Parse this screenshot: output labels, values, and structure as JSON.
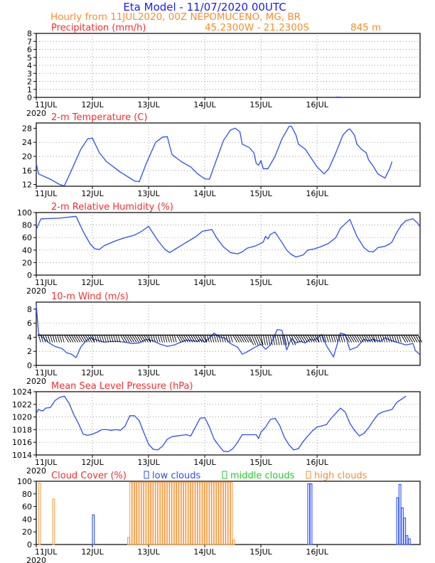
{
  "header": {
    "title": "Eta Model - 11/07/2020 00UTC",
    "line2": "Hourly from 11JUL2020, 00Z  NEPOMUCENO, MG, BR",
    "coords": "45.2300W - 21.2300S",
    "elev": "845  m"
  },
  "colors": {
    "title": "#1a1aff",
    "subtitle": "#ff8c2a",
    "panel_title": "#ff2a2a",
    "line": "#2a4dff",
    "wind": "#000000",
    "low": "#2a4dff",
    "mid": "#22cc22",
    "high": "#ff8c2a"
  },
  "chart_data": [
    {
      "type": "bar",
      "title": "Precipitation (mm/h)",
      "ylim": [
        0,
        8
      ],
      "yticks": [
        0,
        1,
        2,
        3,
        4,
        5,
        6,
        7,
        8
      ],
      "x_ticks": [
        "11JUL",
        "12JUL",
        "13JUL",
        "14JUL",
        "15JUL",
        "16JUL"
      ],
      "x_year": "2020",
      "grid": true,
      "bars": [
        [
          128,
          0.1
        ],
        [
          129,
          0.1
        ]
      ]
    },
    {
      "type": "line",
      "title": "2-m Temperature (C)",
      "ylim": [
        11.5,
        29.5
      ],
      "yticks": [
        12,
        16,
        20,
        24,
        28
      ],
      "x_ticks": [
        "11JUL",
        "12JUL",
        "13JUL",
        "14JUL",
        "15JUL",
        "16JUL"
      ],
      "grid": true,
      "points": [
        [
          0,
          17.9
        ],
        [
          1,
          15
        ],
        [
          6,
          13.5
        ],
        [
          10,
          12
        ],
        [
          12,
          11.6
        ],
        [
          15,
          16
        ],
        [
          19,
          22
        ],
        [
          22,
          25
        ],
        [
          24,
          25.2
        ],
        [
          27,
          21
        ],
        [
          30,
          18.5
        ],
        [
          36,
          15.5
        ],
        [
          42,
          13
        ],
        [
          44,
          12.8
        ],
        [
          47,
          18
        ],
        [
          51,
          24
        ],
        [
          54,
          25.5
        ],
        [
          56,
          25.6
        ],
        [
          57,
          23
        ],
        [
          58,
          20.5
        ],
        [
          62,
          18.5
        ],
        [
          66,
          17
        ],
        [
          69,
          15
        ],
        [
          72,
          13.6
        ],
        [
          74,
          13.5
        ],
        [
          77,
          19
        ],
        [
          80,
          24.5
        ],
        [
          83,
          27.5
        ],
        [
          85,
          28
        ],
        [
          87,
          27
        ],
        [
          88,
          23.5
        ],
        [
          91,
          22.5
        ],
        [
          93,
          21
        ],
        [
          94,
          18
        ],
        [
          95,
          17.5
        ],
        [
          96,
          18.8
        ],
        [
          97,
          16.5
        ],
        [
          99,
          16.5
        ],
        [
          102,
          20
        ],
        [
          105,
          25
        ],
        [
          108,
          28.5
        ],
        [
          109,
          28.6
        ],
        [
          111,
          26
        ],
        [
          112,
          23.5
        ],
        [
          115,
          22
        ],
        [
          117,
          20
        ],
        [
          120,
          17
        ],
        [
          123,
          15
        ],
        [
          125,
          16.5
        ],
        [
          128,
          21
        ],
        [
          131,
          26
        ],
        [
          133,
          27.5
        ],
        [
          134,
          27.8
        ],
        [
          136,
          26
        ],
        [
          137,
          23.5
        ],
        [
          139,
          22
        ],
        [
          141,
          21
        ],
        [
          142,
          19
        ],
        [
          144,
          17.2
        ],
        [
          146,
          15
        ],
        [
          149,
          13.8
        ],
        [
          151,
          16.5
        ],
        [
          152,
          18.5
        ]
      ]
    },
    {
      "type": "line",
      "title": "2-m Relative Humidity (%)",
      "ylim": [
        0,
        100
      ],
      "yticks": [
        0,
        20,
        40,
        60,
        80,
        100
      ],
      "x_ticks": [
        "11JUL",
        "12JUL",
        "13JUL",
        "14JUL",
        "15JUL",
        "16JUL"
      ],
      "x_year": "2020",
      "grid": true,
      "points": [
        [
          0,
          73
        ],
        [
          2,
          90
        ],
        [
          10,
          91
        ],
        [
          17,
          94
        ],
        [
          20,
          70
        ],
        [
          23,
          50
        ],
        [
          25,
          42
        ],
        [
          27,
          41
        ],
        [
          29,
          47
        ],
        [
          34,
          55
        ],
        [
          38,
          60
        ],
        [
          42,
          64
        ],
        [
          45,
          70
        ],
        [
          48,
          78
        ],
        [
          52,
          55
        ],
        [
          55,
          41
        ],
        [
          57,
          36
        ],
        [
          60,
          43
        ],
        [
          64,
          52
        ],
        [
          68,
          61
        ],
        [
          71,
          70
        ],
        [
          75,
          73
        ],
        [
          77,
          60
        ],
        [
          80,
          45
        ],
        [
          83,
          36
        ],
        [
          86,
          34
        ],
        [
          88,
          37
        ],
        [
          90,
          43
        ],
        [
          94,
          47
        ],
        [
          97,
          53
        ],
        [
          98,
          62
        ],
        [
          99,
          58
        ],
        [
          100,
          65
        ],
        [
          102,
          69
        ],
        [
          105,
          52
        ],
        [
          107,
          40
        ],
        [
          109,
          33
        ],
        [
          111,
          29
        ],
        [
          114,
          32
        ],
        [
          116,
          40
        ],
        [
          119,
          42
        ],
        [
          122,
          46
        ],
        [
          125,
          51
        ],
        [
          128,
          60
        ],
        [
          130,
          75
        ],
        [
          132,
          82
        ],
        [
          134,
          89
        ],
        [
          137,
          62
        ],
        [
          140,
          44
        ],
        [
          142,
          38
        ],
        [
          144,
          37
        ],
        [
          146,
          44
        ],
        [
          149,
          46
        ],
        [
          151,
          50
        ],
        [
          152,
          53
        ],
        [
          154,
          68
        ],
        [
          156,
          80
        ],
        [
          158,
          87
        ],
        [
          161,
          90
        ],
        [
          163,
          83
        ],
        [
          164,
          77
        ]
      ]
    },
    {
      "type": "line",
      "title": "10-m Wind (m/s)",
      "ylim": [
        0,
        9
      ],
      "yticks": [
        0,
        2,
        4,
        6,
        8
      ],
      "x_ticks": [
        "11JUL",
        "12JUL",
        "13JUL",
        "14JUL",
        "15JUL",
        "16JUL"
      ],
      "x_year": "2020",
      "grid": true,
      "barb_baseline": 4.3,
      "points": [
        [
          0,
          8.6
        ],
        [
          1,
          4.5
        ],
        [
          3,
          3.9
        ],
        [
          5,
          3.3
        ],
        [
          8,
          2.7
        ],
        [
          11,
          2.4
        ],
        [
          13,
          1.8
        ],
        [
          15,
          1.6
        ],
        [
          17,
          1.1
        ],
        [
          19,
          2.6
        ],
        [
          21,
          3.4
        ],
        [
          23,
          3.9
        ],
        [
          26,
          3.6
        ],
        [
          29,
          3.3
        ],
        [
          32,
          3.4
        ],
        [
          35,
          3.4
        ],
        [
          38,
          3.3
        ],
        [
          41,
          3.1
        ],
        [
          44,
          3.2
        ],
        [
          47,
          3.7
        ],
        [
          50,
          3.5
        ],
        [
          53,
          3.0
        ],
        [
          56,
          2.7
        ],
        [
          59,
          2.9
        ],
        [
          61,
          3.2
        ],
        [
          64,
          3.6
        ],
        [
          67,
          3.5
        ],
        [
          69,
          3.4
        ],
        [
          70,
          3.7
        ],
        [
          72,
          3.3
        ],
        [
          74,
          3.9
        ],
        [
          76,
          4.6
        ],
        [
          78,
          4.1
        ],
        [
          81,
          3.8
        ],
        [
          83,
          3.1
        ],
        [
          86,
          2.6
        ],
        [
          88,
          1.6
        ],
        [
          90,
          1.9
        ],
        [
          93,
          2.5
        ],
        [
          96,
          3.0
        ],
        [
          98,
          2.3
        ],
        [
          100,
          2.9
        ],
        [
          101,
          3.6
        ],
        [
          103,
          5.1
        ],
        [
          105,
          5.0
        ],
        [
          107,
          2.2
        ],
        [
          109,
          3.8
        ],
        [
          111,
          3.2
        ],
        [
          113,
          3.4
        ],
        [
          115,
          3.2
        ],
        [
          117,
          3.7
        ],
        [
          119,
          3.6
        ],
        [
          122,
          4.4
        ],
        [
          124,
          2.8
        ],
        [
          127,
          1.2
        ],
        [
          130,
          4.6
        ],
        [
          132,
          4.4
        ],
        [
          134,
          2.2
        ],
        [
          137,
          2.6
        ],
        [
          140,
          3.7
        ],
        [
          142,
          3.5
        ],
        [
          144,
          3.7
        ],
        [
          147,
          3.4
        ],
        [
          149,
          3.9
        ],
        [
          152,
          3.5
        ],
        [
          155,
          3.2
        ],
        [
          158,
          2.9
        ],
        [
          161,
          3.1
        ],
        [
          162,
          2.1
        ],
        [
          164,
          1.5
        ]
      ]
    },
    {
      "type": "line",
      "title": "Mean Sea Level Pressure (hPa)",
      "ylim": [
        1014,
        1024
      ],
      "yticks": [
        1014,
        1016,
        1018,
        1020,
        1022,
        1024
      ],
      "x_ticks": [
        "11JUL",
        "12JUL",
        "13JUL",
        "14JUL",
        "15JUL",
        "16JUL"
      ],
      "x_year": "2020",
      "grid": true,
      "points": [
        [
          0,
          1020.6
        ],
        [
          1,
          1021.2
        ],
        [
          2,
          1021.0
        ],
        [
          3,
          1021.0
        ],
        [
          4,
          1021.4
        ],
        [
          6,
          1021.5
        ],
        [
          8,
          1022.6
        ],
        [
          10,
          1023.1
        ],
        [
          12,
          1023.3
        ],
        [
          14,
          1022.2
        ],
        [
          16,
          1020.4
        ],
        [
          18,
          1019.0
        ],
        [
          20,
          1017.3
        ],
        [
          22,
          1017.1
        ],
        [
          24,
          1017.3
        ],
        [
          26,
          1017.6
        ],
        [
          28,
          1018.0
        ],
        [
          30,
          1018.0
        ],
        [
          32,
          1017.9
        ],
        [
          34,
          1018.0
        ],
        [
          36,
          1017.9
        ],
        [
          38,
          1018.6
        ],
        [
          40,
          1020.2
        ],
        [
          42,
          1020.2
        ],
        [
          44,
          1019.4
        ],
        [
          46,
          1017.5
        ],
        [
          48,
          1015.7
        ],
        [
          50,
          1014.9
        ],
        [
          52,
          1014.8
        ],
        [
          54,
          1015.4
        ],
        [
          56,
          1016.5
        ],
        [
          58,
          1016.9
        ],
        [
          62,
          1017.1
        ],
        [
          64,
          1017.2
        ],
        [
          66,
          1017.0
        ],
        [
          68,
          1018.4
        ],
        [
          70,
          1019.8
        ],
        [
          72,
          1019.9
        ],
        [
          74,
          1018.4
        ],
        [
          76,
          1016.5
        ],
        [
          78,
          1015.5
        ],
        [
          80,
          1014.6
        ],
        [
          82,
          1014.5
        ],
        [
          84,
          1015.0
        ],
        [
          86,
          1016.0
        ],
        [
          88,
          1017.2
        ],
        [
          90,
          1017.2
        ],
        [
          92,
          1017.2
        ],
        [
          94,
          1017.2
        ],
        [
          95,
          1016.6
        ],
        [
          96,
          1017.6
        ],
        [
          98,
          1018.4
        ],
        [
          100,
          1019.6
        ],
        [
          102,
          1019.8
        ],
        [
          104,
          1018.7
        ],
        [
          106,
          1016.8
        ],
        [
          108,
          1015.6
        ],
        [
          110,
          1014.8
        ],
        [
          112,
          1015.0
        ],
        [
          114,
          1016.1
        ],
        [
          116,
          1017.0
        ],
        [
          118,
          1017.8
        ],
        [
          120,
          1018.4
        ],
        [
          122,
          1018.6
        ],
        [
          124,
          1018.8
        ],
        [
          126,
          1019.8
        ],
        [
          128,
          1020.6
        ],
        [
          130,
          1021.4
        ],
        [
          132,
          1020.8
        ],
        [
          134,
          1019.0
        ],
        [
          136,
          1017.9
        ],
        [
          138,
          1017.0
        ],
        [
          140,
          1017.4
        ],
        [
          142,
          1018.3
        ],
        [
          144,
          1019.4
        ],
        [
          146,
          1020.4
        ],
        [
          148,
          1020.8
        ],
        [
          150,
          1021.0
        ],
        [
          152,
          1021.2
        ],
        [
          154,
          1022.3
        ],
        [
          156,
          1022.8
        ],
        [
          158,
          1023.3
        ]
      ]
    },
    {
      "type": "bar",
      "title": "Cloud Cover (%)",
      "legend": [
        "low clouds",
        "middle clouds",
        "high clouds"
      ],
      "ylim": [
        0,
        100
      ],
      "yticks": [
        0,
        20,
        40,
        60,
        80,
        100
      ],
      "x_ticks": [
        "11JUL",
        "12JUL",
        "13JUL",
        "14JUL",
        "15JUL",
        "16JUL"
      ],
      "x_year": "2020",
      "grid": false,
      "high": [
        [
          1,
          97
        ],
        [
          7,
          72
        ],
        [
          39,
          11
        ],
        [
          40,
          98
        ],
        [
          41,
          98
        ],
        [
          42,
          98
        ],
        [
          43,
          98
        ],
        [
          44,
          98
        ],
        [
          45,
          98
        ],
        [
          46,
          98
        ],
        [
          47,
          98
        ],
        [
          48,
          98
        ],
        [
          49,
          98
        ],
        [
          50,
          98
        ],
        [
          51,
          98
        ],
        [
          52,
          98
        ],
        [
          53,
          98
        ],
        [
          54,
          98
        ],
        [
          55,
          98
        ],
        [
          56,
          98
        ],
        [
          57,
          98
        ],
        [
          58,
          98
        ],
        [
          59,
          98
        ],
        [
          60,
          98
        ],
        [
          61,
          98
        ],
        [
          62,
          98
        ],
        [
          63,
          98
        ],
        [
          64,
          98
        ],
        [
          65,
          98
        ],
        [
          66,
          98
        ],
        [
          67,
          98
        ],
        [
          68,
          98
        ],
        [
          69,
          98
        ],
        [
          70,
          98
        ],
        [
          71,
          98
        ],
        [
          72,
          98
        ],
        [
          73,
          98
        ],
        [
          74,
          98
        ],
        [
          75,
          98
        ],
        [
          76,
          98
        ],
        [
          77,
          98
        ],
        [
          78,
          98
        ],
        [
          79,
          98
        ],
        [
          80,
          98
        ],
        [
          81,
          98
        ],
        [
          82,
          98
        ],
        [
          83,
          98
        ],
        [
          84,
          7
        ]
      ],
      "low": [
        [
          24,
          47
        ],
        [
          116,
          96
        ],
        [
          117,
          96
        ],
        [
          154,
          74
        ],
        [
          155,
          95
        ],
        [
          156,
          58
        ],
        [
          157,
          42
        ],
        [
          158,
          14
        ],
        [
          159,
          9
        ]
      ]
    }
  ]
}
